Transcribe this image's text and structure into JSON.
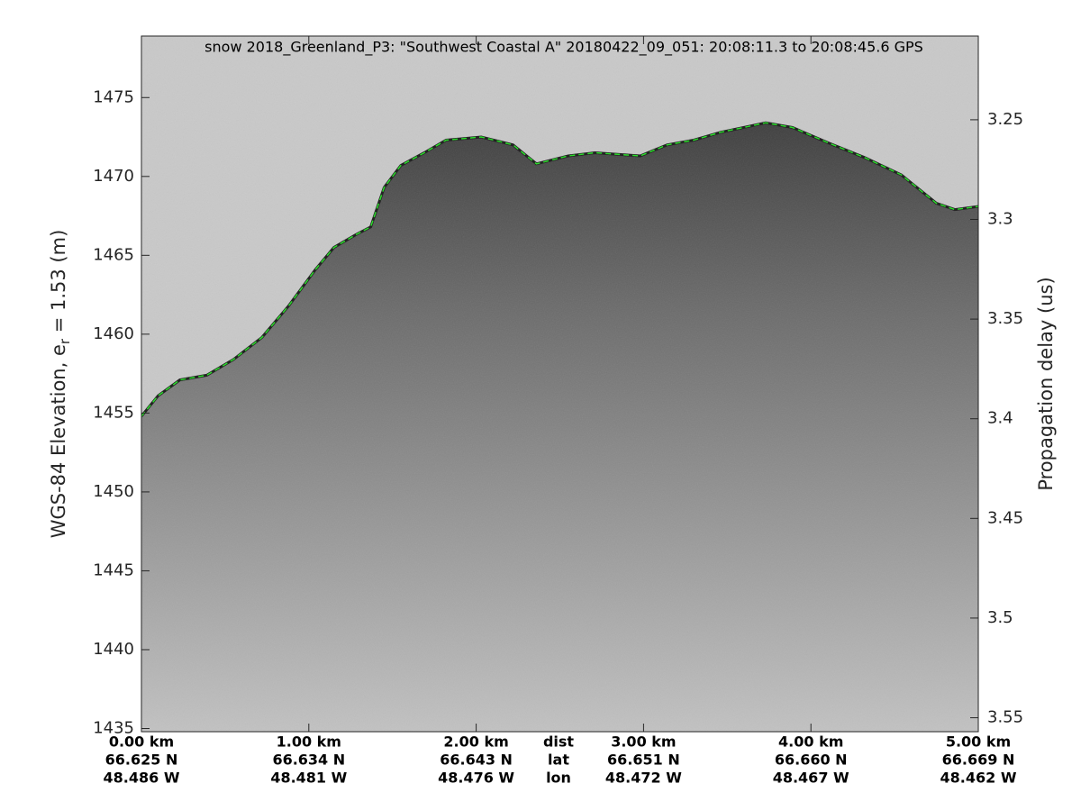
{
  "chart_data": {
    "type": "echogram",
    "title": "snow 2018_Greenland_P3: \"Southwest Coastal A\"  20180422_09_051: 20:08:11.3 to 20:08:45.6 GPS",
    "y_label": {
      "prefix": "WGS-84 Elevation, e",
      "sub": "r",
      "suffix": " = 1.53 (m)"
    },
    "y2_label": "Propagation delay (us)",
    "xlim": [
      0,
      5
    ],
    "xticks": [
      {
        "value": 0,
        "label": "0.00 km"
      },
      {
        "value": 1,
        "label": "1.00 km"
      },
      {
        "value": 2,
        "label": "2.00 km"
      },
      {
        "value": 3,
        "label": "3.00 km"
      },
      {
        "value": 4,
        "label": "4.00 km"
      },
      {
        "value": 5,
        "label": "5.00 km"
      }
    ],
    "lat_labels": [
      "66.625 N",
      "66.634 N",
      "66.643 N",
      "66.651 N",
      "66.660 N",
      "66.669 N"
    ],
    "lon_labels": [
      "48.486 W",
      "48.481 W",
      "48.476 W",
      "48.472 W",
      "48.467 W",
      "48.462 W"
    ],
    "row_labels": [
      "dist",
      "lat",
      "lon"
    ],
    "ylim": [
      1434.8,
      1478.9
    ],
    "yticks": [
      1435,
      1440,
      1445,
      1450,
      1455,
      1460,
      1465,
      1470,
      1475
    ],
    "y2lim": [
      3.557,
      3.208
    ],
    "y2ticks": [
      3.25,
      3.3,
      3.35,
      3.4,
      3.45,
      3.5,
      3.55
    ],
    "series": [
      {
        "name": "surface",
        "color": "#22dd22",
        "x": [
          0,
          0.1,
          0.23,
          0.39,
          0.55,
          0.72,
          0.88,
          1.04,
          1.15,
          1.28,
          1.37,
          1.45,
          1.55,
          1.69,
          1.82,
          2.03,
          2.22,
          2.36,
          2.55,
          2.71,
          2.98,
          3.14,
          3.3,
          3.46,
          3.73,
          3.89,
          4.11,
          4.32,
          4.54,
          4.75,
          4.86,
          5.0
        ],
        "values": [
          1454.8,
          1456.1,
          1457.1,
          1457.4,
          1458.4,
          1459.8,
          1461.8,
          1464.1,
          1465.5,
          1466.3,
          1466.8,
          1469.3,
          1470.7,
          1471.5,
          1472.3,
          1472.5,
          1472.0,
          1470.8,
          1471.3,
          1471.5,
          1471.3,
          1472.0,
          1472.3,
          1472.8,
          1473.4,
          1473.1,
          1472.1,
          1471.2,
          1470.1,
          1468.3,
          1467.9,
          1468.1
        ]
      }
    ]
  }
}
